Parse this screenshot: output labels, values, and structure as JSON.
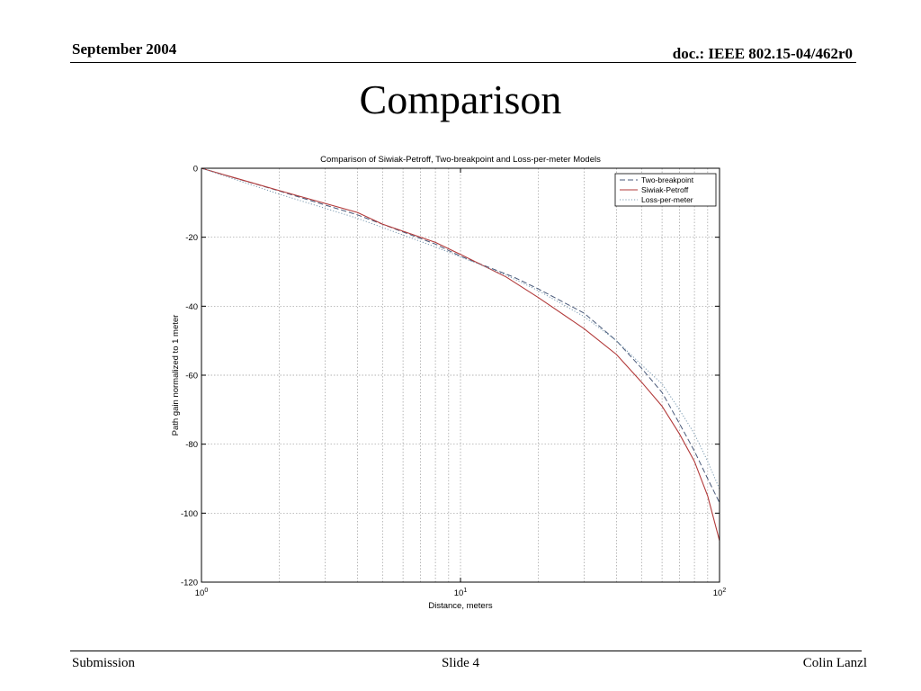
{
  "slide": {
    "header_left": "September 2004",
    "header_right": "doc.: IEEE 802.15-04/462r0",
    "title": "Comparison",
    "footer_left": "Submission",
    "footer_center": "Slide 4",
    "footer_right": "Colin Lanzl"
  },
  "chart_data": {
    "type": "line",
    "title": "Comparison of Siwiak-Petroff, Two-breakpoint and Loss-per-meter Models",
    "xlabel": "Distance, meters",
    "ylabel": "Path gain normalized to 1 meter",
    "x_scale": "log",
    "xlim": [
      1,
      100
    ],
    "ylim": [
      -120,
      0
    ],
    "x_ticks": [
      {
        "value": 1,
        "base": "10",
        "exp": "0"
      },
      {
        "value": 10,
        "base": "10",
        "exp": "1"
      },
      {
        "value": 100,
        "base": "10",
        "exp": "2"
      }
    ],
    "y_ticks": [
      {
        "value": 0,
        "label": "0"
      },
      {
        "value": -20,
        "label": "-20"
      },
      {
        "value": -40,
        "label": "-40"
      },
      {
        "value": -60,
        "label": "-60"
      },
      {
        "value": -80,
        "label": "-80"
      },
      {
        "value": -100,
        "label": "-100"
      },
      {
        "value": -120,
        "label": "-120"
      }
    ],
    "grid": true,
    "legend_position": "top-right",
    "series": [
      {
        "name": "Two-breakpoint",
        "color": "#4a5a7a",
        "dash": "dashed",
        "points": [
          [
            1,
            0
          ],
          [
            2,
            -6.6
          ],
          [
            4,
            -13.5
          ],
          [
            8,
            -22
          ],
          [
            10,
            -25.5
          ],
          [
            16,
            -31.5
          ],
          [
            20,
            -35
          ],
          [
            30,
            -42
          ],
          [
            40,
            -50
          ],
          [
            50,
            -58
          ],
          [
            60,
            -65
          ],
          [
            70,
            -74
          ],
          [
            80,
            -82
          ],
          [
            90,
            -90
          ],
          [
            100,
            -97
          ]
        ]
      },
      {
        "name": "Siwiak-Petroff",
        "color": "#b23a3a",
        "dash": "solid",
        "points": [
          [
            1,
            0
          ],
          [
            2,
            -6.5
          ],
          [
            4,
            -12.8
          ],
          [
            5,
            -16.2
          ],
          [
            8,
            -21.5
          ],
          [
            10,
            -25
          ],
          [
            15,
            -31.5
          ],
          [
            20,
            -37.5
          ],
          [
            30,
            -46.5
          ],
          [
            40,
            -54
          ],
          [
            50,
            -62
          ],
          [
            60,
            -69
          ],
          [
            70,
            -77
          ],
          [
            80,
            -85
          ],
          [
            90,
            -95
          ],
          [
            100,
            -108
          ]
        ]
      },
      {
        "name": "Loss-per-meter",
        "color": "#7a9ab0",
        "dash": "dotted",
        "points": [
          [
            1,
            0
          ],
          [
            2,
            -7.5
          ],
          [
            4,
            -14.5
          ],
          [
            8,
            -22.8
          ],
          [
            10,
            -25.7
          ],
          [
            15,
            -31
          ],
          [
            20,
            -35.5
          ],
          [
            30,
            -43
          ],
          [
            40,
            -50
          ],
          [
            50,
            -57
          ],
          [
            60,
            -62.5
          ],
          [
            70,
            -70
          ],
          [
            80,
            -77
          ],
          [
            90,
            -85
          ],
          [
            100,
            -93
          ]
        ]
      }
    ]
  }
}
